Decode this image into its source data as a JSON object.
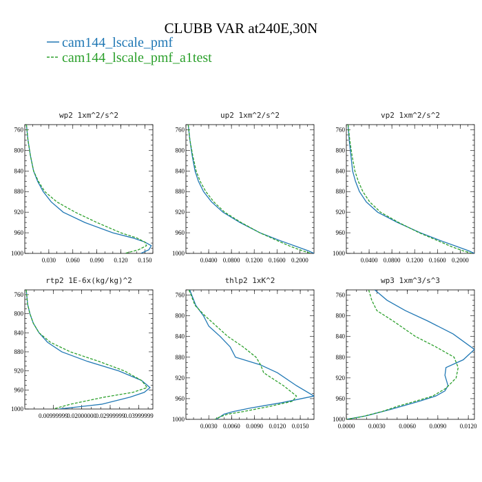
{
  "figure": {
    "title": "CLUBB VAR at240E,30N",
    "legend": [
      {
        "label": "cam144_lscale_pmf",
        "color": "#1f77b4",
        "dash": "solid"
      },
      {
        "label": "cam144_lscale_pmf_a1test",
        "color": "#2ca02c",
        "dash": "dashed"
      }
    ]
  },
  "chart_data": [
    {
      "type": "line",
      "title": "wp2  1xm^2/s^2",
      "xlim": [
        0.0,
        0.16
      ],
      "ylim": [
        1000,
        750
      ],
      "xticks": [
        0.03,
        0.06,
        0.09,
        0.12,
        0.15
      ],
      "xtick_labels": [
        "0.030",
        "0.060",
        "0.090",
        "0.120",
        "0.150"
      ],
      "yticks": [
        760,
        800,
        840,
        880,
        920,
        960,
        1000
      ],
      "ytick_labels": [
        "760",
        "800",
        "840",
        "880",
        "920",
        "960",
        "1000"
      ],
      "series": [
        {
          "name": "cam144_lscale_pmf",
          "color": "#1f77b4",
          "dash": "solid",
          "x": [
            0.002,
            0.004,
            0.007,
            0.011,
            0.016,
            0.023,
            0.033,
            0.048,
            0.075,
            0.11,
            0.135,
            0.15,
            0.158,
            0.155,
            0.145
          ],
          "y": [
            750,
            780,
            810,
            840,
            860,
            880,
            900,
            920,
            940,
            960,
            970,
            978,
            985,
            993,
            1000
          ]
        },
        {
          "name": "cam144_lscale_pmf_a1test",
          "color": "#2ca02c",
          "dash": "dashed",
          "x": [
            0.002,
            0.004,
            0.007,
            0.011,
            0.017,
            0.025,
            0.04,
            0.063,
            0.09,
            0.12,
            0.14,
            0.15,
            0.152,
            0.142,
            0.125
          ],
          "y": [
            750,
            780,
            810,
            840,
            860,
            880,
            900,
            920,
            940,
            960,
            970,
            978,
            985,
            993,
            1000
          ]
        }
      ]
    },
    {
      "type": "line",
      "title": "up2  1xm^2/s^2",
      "xlim": [
        0.0,
        0.225
      ],
      "ylim": [
        1000,
        750
      ],
      "xticks": [
        0.04,
        0.08,
        0.12,
        0.16,
        0.2
      ],
      "xtick_labels": [
        "0.0400",
        "0.0800",
        "0.1200",
        "0.1600",
        "0.2000"
      ],
      "yticks": [
        760,
        800,
        840,
        880,
        920,
        960,
        1000
      ],
      "ytick_labels": [
        "760",
        "800",
        "840",
        "880",
        "920",
        "960",
        "1000"
      ],
      "series": [
        {
          "name": "cam144_lscale_pmf",
          "color": "#1f77b4",
          "dash": "solid",
          "x": [
            0.004,
            0.007,
            0.011,
            0.016,
            0.022,
            0.031,
            0.045,
            0.065,
            0.095,
            0.13,
            0.165,
            0.195,
            0.215,
            0.225
          ],
          "y": [
            750,
            780,
            810,
            840,
            860,
            880,
            900,
            920,
            940,
            960,
            975,
            987,
            995,
            1000
          ]
        },
        {
          "name": "cam144_lscale_pmf_a1test",
          "color": "#2ca02c",
          "dash": "dashed",
          "x": [
            0.004,
            0.007,
            0.012,
            0.018,
            0.025,
            0.035,
            0.049,
            0.068,
            0.097,
            0.13,
            0.16,
            0.185,
            0.205,
            0.22
          ],
          "y": [
            750,
            780,
            810,
            840,
            860,
            880,
            900,
            920,
            940,
            960,
            975,
            987,
            995,
            1000
          ]
        }
      ]
    },
    {
      "type": "line",
      "title": "vp2  1xm^2/s^2",
      "xlim": [
        0.0,
        0.225
      ],
      "ylim": [
        1000,
        750
      ],
      "xticks": [
        0.04,
        0.08,
        0.12,
        0.16,
        0.2
      ],
      "xtick_labels": [
        "0.0400",
        "0.0800",
        "0.1200",
        "0.1600",
        "0.2000"
      ],
      "yticks": [
        760,
        800,
        840,
        880,
        920,
        960,
        1000
      ],
      "ytick_labels": [
        "760",
        "800",
        "840",
        "880",
        "920",
        "960",
        "1000"
      ],
      "series": [
        {
          "name": "cam144_lscale_pmf",
          "color": "#1f77b4",
          "dash": "solid",
          "x": [
            0.003,
            0.005,
            0.008,
            0.011,
            0.016,
            0.023,
            0.035,
            0.055,
            0.09,
            0.13,
            0.165,
            0.195,
            0.215,
            0.225
          ],
          "y": [
            750,
            780,
            810,
            840,
            860,
            880,
            900,
            920,
            940,
            960,
            975,
            987,
            995,
            1000
          ]
        },
        {
          "name": "cam144_lscale_pmf_a1test",
          "color": "#2ca02c",
          "dash": "dashed",
          "x": [
            0.003,
            0.006,
            0.01,
            0.015,
            0.021,
            0.029,
            0.041,
            0.06,
            0.092,
            0.128,
            0.16,
            0.185,
            0.205,
            0.22
          ],
          "y": [
            750,
            780,
            810,
            840,
            860,
            880,
            900,
            920,
            940,
            960,
            975,
            987,
            995,
            1000
          ]
        }
      ]
    },
    {
      "type": "line",
      "title": "rtp2  1E-6x(kg/kg)^2",
      "xlim": [
        0.0,
        0.045
      ],
      "ylim": [
        1000,
        750
      ],
      "xticks": [
        0.0099999998,
        0.02,
        0.0299999993,
        0.039999999
      ],
      "xtick_labels": [
        "0.00999999",
        "0.02000000",
        "0.02999999",
        "0.03999999"
      ],
      "yticks": [
        760,
        800,
        840,
        880,
        920,
        960,
        1000
      ],
      "ytick_labels": [
        "760",
        "800",
        "840",
        "880",
        "920",
        "960",
        "1000"
      ],
      "series": [
        {
          "name": "cam144_lscale_pmf",
          "color": "#1f77b4",
          "dash": "solid",
          "x": [
            0.0005,
            0.001,
            0.0018,
            0.003,
            0.005,
            0.008,
            0.013,
            0.022,
            0.033,
            0.041,
            0.044,
            0.042,
            0.037,
            0.027,
            0.012
          ],
          "y": [
            750,
            780,
            800,
            820,
            840,
            860,
            880,
            900,
            920,
            940,
            955,
            965,
            975,
            990,
            1000
          ]
        },
        {
          "name": "cam144_lscale_pmf_a1test",
          "color": "#2ca02c",
          "dash": "dashed",
          "x": [
            0.0005,
            0.001,
            0.0018,
            0.003,
            0.005,
            0.009,
            0.016,
            0.026,
            0.035,
            0.041,
            0.043,
            0.038,
            0.028,
            0.016,
            0.01
          ],
          "y": [
            750,
            780,
            800,
            820,
            840,
            860,
            880,
            900,
            920,
            940,
            955,
            965,
            975,
            990,
            1000
          ]
        }
      ]
    },
    {
      "type": "line",
      "title": "thlp2  1xK^2",
      "xlim": [
        0.0,
        0.0168
      ],
      "ylim": [
        1000,
        750
      ],
      "xticks": [
        0.003,
        0.006,
        0.009,
        0.012,
        0.015
      ],
      "xtick_labels": [
        "0.0030",
        "0.0060",
        "0.0090",
        "0.0120",
        "0.0150"
      ],
      "yticks": [
        760,
        800,
        840,
        880,
        920,
        960,
        1000
      ],
      "ytick_labels": [
        "760",
        "800",
        "840",
        "880",
        "920",
        "960",
        "1000"
      ],
      "series": [
        {
          "name": "cam144_lscale_pmf",
          "color": "#1f77b4",
          "dash": "solid",
          "x": [
            0.0005,
            0.0013,
            0.0023,
            0.003,
            0.0045,
            0.0058,
            0.0065,
            0.0098,
            0.012,
            0.0145,
            0.0168,
            0.0125,
            0.0085,
            0.0062,
            0.005,
            0.0045,
            0.004
          ],
          "y": [
            750,
            780,
            800,
            820,
            840,
            860,
            880,
            895,
            910,
            935,
            955,
            968,
            978,
            985,
            990,
            995,
            1000
          ]
        },
        {
          "name": "cam144_lscale_pmf_a1test",
          "color": "#2ca02c",
          "dash": "dashed",
          "x": [
            0.0004,
            0.0012,
            0.0025,
            0.004,
            0.0055,
            0.0075,
            0.0092,
            0.0098,
            0.0102,
            0.0128,
            0.0145,
            0.014,
            0.011,
            0.0075,
            0.0055,
            0.0045,
            0.0038
          ],
          "y": [
            750,
            780,
            800,
            820,
            840,
            860,
            880,
            895,
            910,
            935,
            955,
            965,
            975,
            985,
            990,
            995,
            1000
          ]
        }
      ]
    },
    {
      "type": "line",
      "title": "wp3  1xm^3/s^3",
      "xlim": [
        0.0,
        0.0126
      ],
      "ylim": [
        1000,
        750
      ],
      "xticks": [
        0.0,
        0.003,
        0.006,
        0.009,
        0.012
      ],
      "xtick_labels": [
        "0.0000",
        "0.0030",
        "0.0060",
        "0.0090",
        "0.0120"
      ],
      "yticks": [
        760,
        800,
        840,
        880,
        920,
        960,
        1000
      ],
      "ytick_labels": [
        "760",
        "800",
        "840",
        "880",
        "920",
        "960",
        "1000"
      ],
      "series": [
        {
          "name": "cam144_lscale_pmf",
          "color": "#1f77b4",
          "dash": "solid",
          "x": [
            0.0028,
            0.004,
            0.0058,
            0.008,
            0.0105,
            0.0126,
            0.0115,
            0.0098,
            0.0097,
            0.01,
            0.0097,
            0.0088,
            0.0072,
            0.0045,
            0.002,
            0.0
          ],
          "y": [
            750,
            770,
            790,
            810,
            835,
            865,
            885,
            900,
            915,
            935,
            945,
            955,
            965,
            980,
            993,
            1000
          ]
        },
        {
          "name": "cam144_lscale_pmf_a1test",
          "color": "#2ca02c",
          "dash": "dashed",
          "x": [
            0.0022,
            0.0025,
            0.003,
            0.0046,
            0.0068,
            0.0088,
            0.0106,
            0.011,
            0.0108,
            0.0098,
            0.0085,
            0.0068,
            0.005,
            0.0035,
            0.0015,
            0.0
          ],
          "y": [
            750,
            770,
            790,
            810,
            840,
            860,
            880,
            900,
            920,
            940,
            955,
            965,
            975,
            985,
            995,
            1000
          ]
        }
      ]
    }
  ]
}
